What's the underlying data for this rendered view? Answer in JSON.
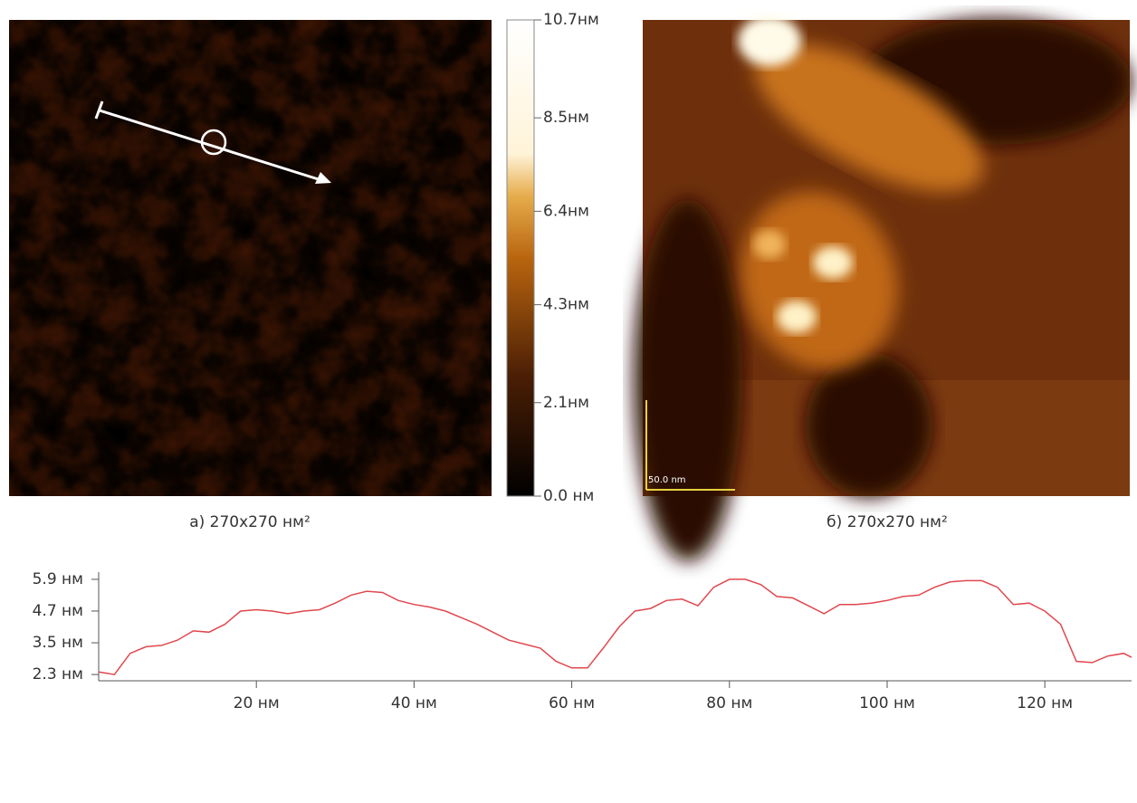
{
  "chart_data": [
    {
      "type": "colorbar",
      "ylim": [
        0,
        10.7
      ],
      "yticks": [
        {
          "value": 0,
          "label": "0.0 нм"
        },
        {
          "value": 2.1,
          "label": "2.1нм"
        },
        {
          "value": 4.3,
          "label": "4.3нм"
        },
        {
          "value": 6.4,
          "label": "6.4нм"
        },
        {
          "value": 8.5,
          "label": "8.5нм"
        },
        {
          "value": 10.7,
          "label": "10.7нм"
        }
      ]
    },
    {
      "type": "line",
      "x": [
        0,
        2,
        4,
        6,
        8,
        10,
        12,
        14,
        16,
        18,
        20,
        22,
        24,
        26,
        28,
        30,
        32,
        34,
        36,
        38,
        40,
        42,
        44,
        46,
        48,
        50,
        52,
        54,
        56,
        58,
        60,
        62,
        64,
        66,
        68,
        70,
        72,
        74,
        76,
        78,
        80,
        82,
        84,
        86,
        88,
        90,
        92,
        94,
        96,
        98,
        100,
        102,
        104,
        106,
        108,
        110,
        112,
        114,
        116,
        118,
        120,
        122,
        124,
        126,
        128,
        130,
        131
      ],
      "series": [
        {
          "color": "#e0484f",
          "values": [
            2.4,
            2.3,
            3.1,
            3.35,
            3.4,
            3.6,
            3.95,
            3.9,
            4.2,
            4.7,
            4.75,
            4.7,
            4.6,
            4.7,
            4.75,
            5.0,
            5.3,
            5.45,
            5.4,
            5.1,
            4.95,
            4.85,
            4.7,
            4.45,
            4.2,
            3.9,
            3.6,
            3.45,
            3.3,
            2.8,
            2.55,
            2.55,
            3.3,
            4.1,
            4.7,
            4.8,
            5.1,
            5.15,
            4.9,
            5.6,
            5.9,
            5.9,
            5.7,
            5.25,
            5.2,
            4.9,
            4.6,
            4.95,
            4.95,
            5.0,
            5.1,
            5.25,
            5.3,
            5.6,
            5.8,
            5.85,
            5.85,
            5.6,
            4.95,
            5.0,
            4.7,
            4.2,
            2.8,
            2.75,
            3.0,
            3.1,
            2.95
          ]
        }
      ],
      "xlim": [
        0,
        131
      ],
      "xticks": [
        {
          "value": 20,
          "label": "20 нм"
        },
        {
          "value": 40,
          "label": "40 нм"
        },
        {
          "value": 60,
          "label": "60 нм"
        },
        {
          "value": 80,
          "label": "80 нм"
        },
        {
          "value": 100,
          "label": "100 нм"
        },
        {
          "value": 120,
          "label": "120 нм"
        }
      ],
      "ylim": [
        2.2,
        6.0
      ],
      "yticks": [
        {
          "value": 2.3,
          "label": "2.3 нм"
        },
        {
          "value": 3.5,
          "label": "3.5 нм"
        },
        {
          "value": 4.7,
          "label": "4.7 нм"
        },
        {
          "value": 5.9,
          "label": "5.9 нм"
        }
      ]
    }
  ],
  "panels": [
    {
      "caption": "а) 270х270 нм²"
    },
    {
      "caption": "б) 270х270 нм²",
      "scale_label": "50.0 nm"
    }
  ]
}
